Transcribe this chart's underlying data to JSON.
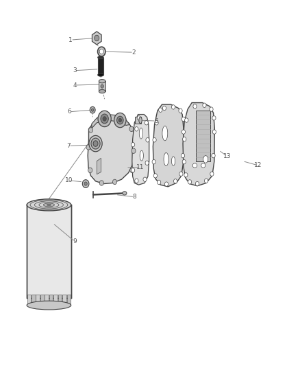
{
  "bg_color": "#ffffff",
  "line_color": "#444444",
  "text_color": "#555555",
  "leader_color": "#888888",
  "parts_labels": [
    [
      1,
      0.235,
      0.892,
      0.318,
      0.897
    ],
    [
      2,
      0.445,
      0.858,
      0.338,
      0.86
    ],
    [
      3,
      0.248,
      0.808,
      0.33,
      0.812
    ],
    [
      4,
      0.248,
      0.768,
      0.335,
      0.77
    ],
    [
      5,
      0.52,
      0.67,
      0.46,
      0.672
    ],
    [
      6,
      0.23,
      0.695,
      0.305,
      0.7
    ],
    [
      7,
      0.228,
      0.602,
      0.302,
      0.604
    ],
    [
      8,
      0.448,
      0.462,
      0.385,
      0.468
    ],
    [
      9,
      0.248,
      0.34,
      0.175,
      0.39
    ],
    [
      10,
      0.228,
      0.507,
      0.276,
      0.503
    ],
    [
      11,
      0.468,
      0.543,
      0.42,
      0.543
    ],
    [
      12,
      0.862,
      0.548,
      0.81,
      0.56
    ],
    [
      13,
      0.758,
      0.573,
      0.73,
      0.59
    ]
  ]
}
